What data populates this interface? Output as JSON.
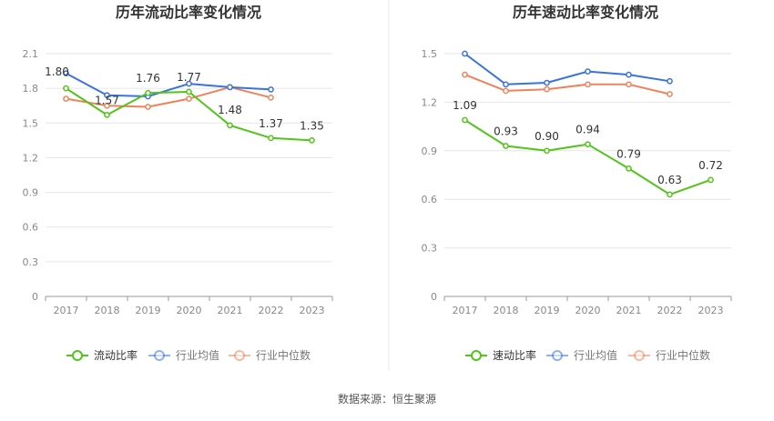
{
  "source_text": "数据来源：恒生聚源",
  "colors": {
    "primary": "#52c41a",
    "industry_avg": "#3a73d9",
    "industry_median": "#f0825a",
    "grid": "#e6e6e6",
    "axis_text": "#888888",
    "title": "#333333"
  },
  "chart_data": [
    {
      "type": "line",
      "title": "历年流动比率变化情况",
      "categories": [
        "2017",
        "2018",
        "2019",
        "2020",
        "2021",
        "2022",
        "2023"
      ],
      "ylim": [
        0,
        2.1
      ],
      "yticks": [
        "0",
        "0.3",
        "0.6",
        "0.9",
        "1.2",
        "1.5",
        "1.8",
        "2.1"
      ],
      "grid": true,
      "legend_position": "bottom",
      "series": [
        {
          "name": "流动比率",
          "values": [
            1.8,
            1.57,
            1.76,
            1.77,
            1.48,
            1.37,
            1.35
          ],
          "labels": [
            "1.80",
            "1.57",
            "1.76",
            "1.77",
            "1.48",
            "1.37",
            "1.35"
          ],
          "color": "#52c41a"
        },
        {
          "name": "行业均值",
          "values": [
            1.93,
            1.74,
            1.73,
            1.84,
            1.81,
            1.79,
            null
          ],
          "color": "#3a73d9"
        },
        {
          "name": "行业中位数",
          "values": [
            1.71,
            1.65,
            1.64,
            1.71,
            1.81,
            1.72,
            null
          ],
          "color": "#f0825a"
        }
      ]
    },
    {
      "type": "line",
      "title": "历年速动比率变化情况",
      "categories": [
        "2017",
        "2018",
        "2019",
        "2020",
        "2021",
        "2022",
        "2023"
      ],
      "ylim": [
        0,
        1.5
      ],
      "yticks": [
        "0",
        "0.3",
        "0.6",
        "0.9",
        "1.2",
        "1.5"
      ],
      "grid": true,
      "legend_position": "bottom",
      "series": [
        {
          "name": "速动比率",
          "values": [
            1.09,
            0.93,
            0.9,
            0.94,
            0.79,
            0.63,
            0.72
          ],
          "labels": [
            "1.09",
            "0.93",
            "0.90",
            "0.94",
            "0.79",
            "0.63",
            "0.72"
          ],
          "color": "#52c41a"
        },
        {
          "name": "行业均值",
          "values": [
            1.5,
            1.31,
            1.32,
            1.39,
            1.37,
            1.33,
            null
          ],
          "color": "#3a73d9"
        },
        {
          "name": "行业中位数",
          "values": [
            1.37,
            1.27,
            1.28,
            1.31,
            1.31,
            1.25,
            null
          ],
          "color": "#f0825a"
        }
      ]
    }
  ]
}
